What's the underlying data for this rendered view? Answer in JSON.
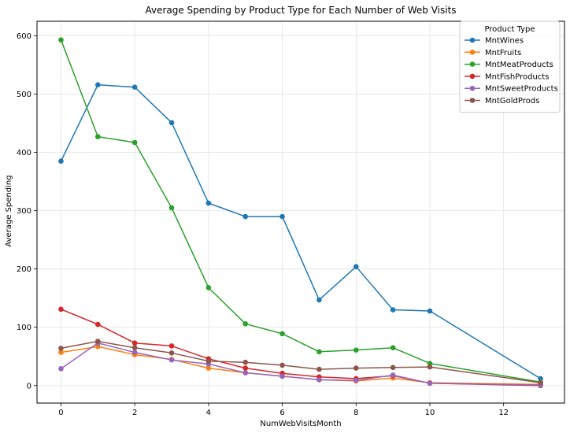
{
  "chart_data": {
    "type": "line",
    "title": "Average Spending by Product Type for Each Number of Web Visits",
    "xlabel": "NumWebVisitsMonth",
    "ylabel": "Average Spending",
    "x": [
      0,
      1,
      2,
      3,
      4,
      5,
      6,
      7,
      8,
      9,
      10,
      13
    ],
    "xlim": [
      -0.65,
      13.65
    ],
    "ylim": [
      -30,
      625
    ],
    "xticks": [
      0,
      2,
      4,
      6,
      8,
      10,
      12
    ],
    "yticks": [
      0,
      100,
      200,
      300,
      400,
      500,
      600
    ],
    "grid": true,
    "legend_title": "Product Type",
    "legend_position": "top-right",
    "series": [
      {
        "name": "MntWines",
        "color": "#1f77b4",
        "values": [
          385,
          516,
          512,
          451,
          313,
          290,
          290,
          147,
          204,
          130,
          128,
          12
        ]
      },
      {
        "name": "MntFruits",
        "color": "#ff7f0e",
        "values": [
          57,
          67,
          53,
          45,
          30,
          22,
          16,
          10,
          8,
          13,
          5,
          2
        ]
      },
      {
        "name": "MntMeatProducts",
        "color": "#2ca02c",
        "values": [
          593,
          427,
          417,
          305,
          168,
          106,
          89,
          58,
          61,
          65,
          38,
          6
        ]
      },
      {
        "name": "MntFishProducts",
        "color": "#d62728",
        "values": [
          131,
          105,
          73,
          68,
          46,
          30,
          21,
          15,
          12,
          17,
          4,
          0
        ]
      },
      {
        "name": "MntSweetProducts",
        "color": "#9467bd",
        "values": [
          29,
          73,
          57,
          44,
          37,
          22,
          16,
          10,
          9,
          18,
          4,
          1
        ]
      },
      {
        "name": "MntGoldProds",
        "color": "#8c564b",
        "values": [
          64,
          76,
          65,
          56,
          42,
          40,
          35,
          28,
          30,
          31,
          32,
          5
        ]
      }
    ]
  }
}
